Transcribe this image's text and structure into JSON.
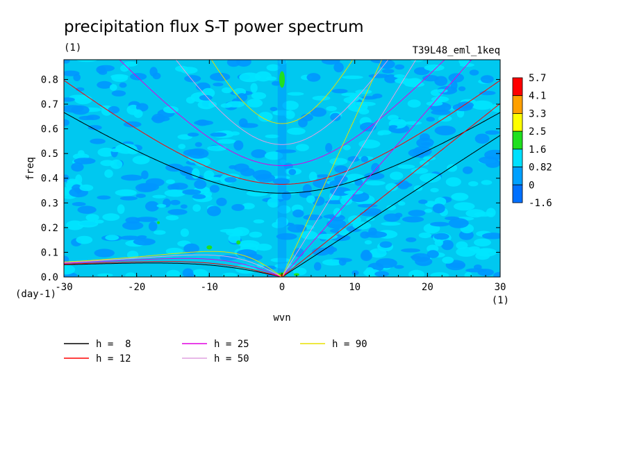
{
  "chart_data": {
    "type": "heatmap",
    "title": "precipitation flux S-T power spectrum",
    "subtitle_left": "(1)",
    "subtitle_right": "T39L48_eml_1keq",
    "xlabel": "wvn",
    "ylabel": "freq",
    "x_unit": "(1)",
    "y_unit": "(day-1)",
    "xlim": [
      -30,
      30
    ],
    "ylim": [
      0,
      0.88
    ],
    "x_ticks": [
      -30,
      -20,
      -10,
      0,
      10,
      20,
      30
    ],
    "y_ticks": [
      0.0,
      0.1,
      0.2,
      0.3,
      0.4,
      0.5,
      0.6,
      0.7,
      0.8
    ],
    "colorbar": {
      "levels": [
        "5.7",
        "4.1",
        "3.3",
        "2.5",
        "1.6",
        "0.82",
        "0",
        "-1.6"
      ],
      "colors": [
        "#ff0000",
        "#ffa000",
        "#ffff00",
        "#20e020",
        "#00e0ff",
        "#00a0ff",
        "#0070ff"
      ]
    },
    "field_colors": {
      "background": "#00c8f0",
      "light": "#00e6ff",
      "dark": "#0096ff",
      "peak": "#20e020"
    },
    "series": [
      {
        "name": "h =  8",
        "h": 8,
        "color": "#000000"
      },
      {
        "name": "h = 12",
        "h": 12,
        "color": "#ff0000"
      },
      {
        "name": "h = 25",
        "h": 25,
        "color": "#e000e0"
      },
      {
        "name": "h = 50",
        "h": 50,
        "color": "#e0a0e0"
      },
      {
        "name": "h = 90",
        "h": 90,
        "color": "#e8e000"
      }
    ]
  }
}
